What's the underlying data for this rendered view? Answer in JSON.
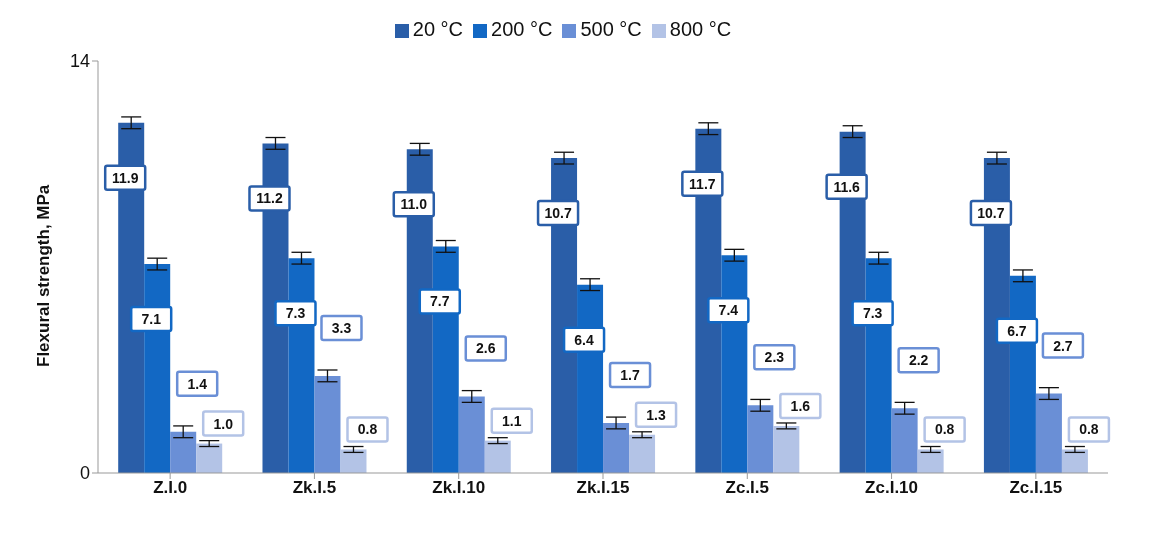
{
  "chart_data": {
    "type": "bar",
    "ylabel": "Flexural strength, MPa",
    "categories": [
      "Z.I.0",
      "Zk.I.5",
      "Zk.I.10",
      "Zk.I.15",
      "Zc.I.5",
      "Zc.I.10",
      "Zc.I.15"
    ],
    "series": [
      {
        "name": "20 °C",
        "color": "#2a5ea8",
        "values": [
          11.9,
          11.2,
          11.0,
          10.7,
          11.7,
          11.6,
          10.7
        ],
        "errors": [
          0.2,
          0.2,
          0.2,
          0.2,
          0.2,
          0.2,
          0.2
        ],
        "value_labels": [
          "11.9",
          "11.2",
          "11.0",
          "10.7",
          "11.7",
          "11.6",
          "10.7"
        ]
      },
      {
        "name": "200 °C",
        "color": "#1268c4",
        "values": [
          7.1,
          7.3,
          7.7,
          6.4,
          7.4,
          7.3,
          6.7
        ],
        "errors": [
          0.2,
          0.2,
          0.2,
          0.2,
          0.2,
          0.2,
          0.2
        ],
        "value_labels": [
          "7.1",
          "7.3",
          "7.7",
          "6.4",
          "7.4",
          "7.3",
          "6.7"
        ]
      },
      {
        "name": "500 °C",
        "color": "#6a8fd6",
        "values": [
          1.4,
          3.3,
          2.6,
          1.7,
          2.3,
          2.2,
          2.7
        ],
        "errors": [
          0.2,
          0.2,
          0.2,
          0.2,
          0.2,
          0.2,
          0.2
        ],
        "value_labels": [
          "1.4",
          "3.3",
          "2.6",
          "1.7",
          "2.3",
          "2.2",
          "2.7"
        ]
      },
      {
        "name": "800 °C",
        "color": "#b3c3e6",
        "values": [
          1.0,
          0.8,
          1.1,
          1.3,
          1.6,
          0.8,
          0.8
        ],
        "errors": [
          0.1,
          0.1,
          0.1,
          0.1,
          0.1,
          0.1,
          0.1
        ],
        "value_labels": [
          "1.0",
          "0.8",
          "1.1",
          "1.3",
          "1.6",
          "0.8",
          "0.8"
        ]
      }
    ],
    "ylim": [
      0,
      14
    ],
    "yticks": [
      0,
      14
    ],
    "legend": "top"
  }
}
